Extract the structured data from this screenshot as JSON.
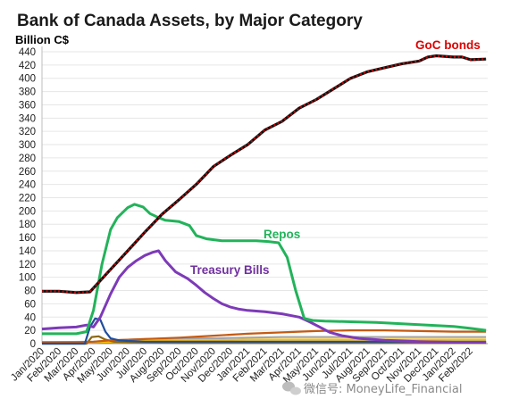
{
  "chart_data": {
    "type": "line",
    "title": "Bank of Canada Assets, by Major Category",
    "ylabel": "Billion C$",
    "xlabel": "",
    "ylim": [
      0,
      440
    ],
    "yticks": [
      0,
      20,
      40,
      60,
      80,
      100,
      120,
      140,
      160,
      180,
      200,
      220,
      240,
      260,
      280,
      300,
      320,
      340,
      360,
      380,
      400,
      420,
      440
    ],
    "grid": true,
    "legend": "inline labels",
    "categories": [
      "Jan/2020",
      "Feb/2020",
      "Mar/2020",
      "Apr/2020",
      "May/2020",
      "Jun/2020",
      "Jul/2020",
      "Aug/2020",
      "Sep/2020",
      "Oct/2020",
      "Nov/2020",
      "Dec/2020",
      "Jan/2021",
      "Feb/2021",
      "Mar/2021",
      "Apr/2021",
      "May/2021",
      "Jun/2021",
      "Jul/2021",
      "Aug/2021",
      "Sep/2021",
      "Oct/2021",
      "Nov/2021",
      "Dec/2021",
      "Jan/2022",
      "Feb/2022"
    ],
    "xtick_labels": [
      "Jan/2020",
      "Feb/2020",
      "Mar/2020",
      "Apr/2020",
      "May/2020",
      "Jun/2020",
      "Jul/2020",
      "Aug/2020",
      "Sep/2020",
      "Oct/2020",
      "Nov/2020",
      "Dec/2020",
      "Jan/2021",
      "Feb/2021",
      "Mar/2021",
      "Apr/2021",
      "May/2021",
      "Jun/2021",
      "Jul/2021",
      "Aug/2021",
      "Sep/2021",
      "Oct/2021",
      "Nov/2021",
      "Dec/2021",
      "Jan/2022",
      "Feb/2022"
    ],
    "series": [
      {
        "name": "GoC bonds",
        "color": "#c00000",
        "style": "dotted",
        "label_color": "#e00000",
        "values": [
          [
            0,
            79
          ],
          [
            1,
            79
          ],
          [
            2,
            77
          ],
          [
            2.8,
            78
          ],
          [
            3.3,
            92
          ],
          [
            4,
            112
          ],
          [
            5,
            140
          ],
          [
            6,
            168
          ],
          [
            7,
            195
          ],
          [
            8,
            217
          ],
          [
            9,
            240
          ],
          [
            10,
            267
          ],
          [
            11,
            284
          ],
          [
            12,
            300
          ],
          [
            13,
            322
          ],
          [
            14,
            335
          ],
          [
            15,
            355
          ],
          [
            16,
            368
          ],
          [
            17,
            384
          ],
          [
            18,
            400
          ],
          [
            19,
            410
          ],
          [
            20,
            416
          ],
          [
            21,
            422
          ],
          [
            22,
            426
          ],
          [
            22.5,
            432
          ],
          [
            23,
            434
          ],
          [
            24,
            432
          ],
          [
            24.5,
            432
          ],
          [
            25,
            428
          ],
          [
            25.9,
            429
          ]
        ]
      },
      {
        "name": "Repos",
        "color": "#22b35a",
        "style": "solid",
        "label_color": "#22b35a",
        "values": [
          [
            0,
            15
          ],
          [
            2,
            15
          ],
          [
            2.6,
            18
          ],
          [
            3,
            50
          ],
          [
            3.5,
            120
          ],
          [
            4,
            172
          ],
          [
            4.4,
            190
          ],
          [
            5,
            205
          ],
          [
            5.4,
            210
          ],
          [
            5.9,
            206
          ],
          [
            6.3,
            196
          ],
          [
            6.8,
            190
          ],
          [
            7.2,
            186
          ],
          [
            8,
            184
          ],
          [
            8.6,
            178
          ],
          [
            9,
            163
          ],
          [
            9.6,
            158
          ],
          [
            10.5,
            155
          ],
          [
            11.5,
            155
          ],
          [
            12.5,
            155
          ],
          [
            13.2,
            154
          ],
          [
            13.8,
            152
          ],
          [
            14.3,
            130
          ],
          [
            14.8,
            80
          ],
          [
            15.3,
            38
          ],
          [
            15.8,
            35
          ],
          [
            16.5,
            34
          ],
          [
            18,
            33
          ],
          [
            19.5,
            32
          ],
          [
            21,
            30
          ],
          [
            22.5,
            28
          ],
          [
            24,
            26
          ],
          [
            25,
            23
          ],
          [
            25.9,
            20
          ]
        ]
      },
      {
        "name": "Treasury Bills",
        "color": "#7d3ab8",
        "style": "solid",
        "label_color": "#7030a0",
        "values": [
          [
            0,
            22
          ],
          [
            1,
            24
          ],
          [
            2,
            25
          ],
          [
            2.6,
            28
          ],
          [
            3,
            25
          ],
          [
            3.4,
            40
          ],
          [
            4,
            75
          ],
          [
            4.5,
            100
          ],
          [
            5,
            115
          ],
          [
            5.5,
            125
          ],
          [
            6,
            133
          ],
          [
            6.5,
            138
          ],
          [
            6.8,
            140
          ],
          [
            7.2,
            125
          ],
          [
            7.8,
            108
          ],
          [
            8.5,
            98
          ],
          [
            9,
            88
          ],
          [
            9.5,
            77
          ],
          [
            10,
            68
          ],
          [
            10.5,
            60
          ],
          [
            11,
            55
          ],
          [
            11.5,
            52
          ],
          [
            12,
            50
          ],
          [
            13,
            48
          ],
          [
            14,
            45
          ],
          [
            14.6,
            42
          ],
          [
            15,
            40
          ],
          [
            15.6,
            33
          ],
          [
            16.2,
            25
          ],
          [
            16.8,
            17
          ],
          [
            17.5,
            12
          ],
          [
            18.5,
            8
          ],
          [
            20,
            5
          ],
          [
            22,
            3
          ],
          [
            24,
            2
          ],
          [
            25.9,
            2
          ]
        ]
      },
      {
        "name": "",
        "color": "#1f4e9c",
        "style": "solid",
        "values": [
          [
            0,
            0
          ],
          [
            2.5,
            0
          ],
          [
            2.8,
            25
          ],
          [
            3.1,
            38
          ],
          [
            3.4,
            36
          ],
          [
            3.7,
            18
          ],
          [
            4,
            8
          ],
          [
            4.5,
            5
          ],
          [
            5,
            4
          ],
          [
            6,
            3
          ],
          [
            8,
            3
          ],
          [
            12,
            3
          ],
          [
            16,
            3
          ],
          [
            20,
            3
          ],
          [
            24,
            3
          ],
          [
            25.9,
            3
          ]
        ]
      },
      {
        "name": "",
        "color": "#c55a11",
        "style": "solid",
        "values": [
          [
            0,
            2
          ],
          [
            2,
            2
          ],
          [
            3,
            3
          ],
          [
            4,
            5
          ],
          [
            6,
            7
          ],
          [
            8,
            9
          ],
          [
            10,
            12
          ],
          [
            12,
            15
          ],
          [
            14,
            17
          ],
          [
            16,
            19
          ],
          [
            18,
            20
          ],
          [
            20,
            20
          ],
          [
            22,
            19
          ],
          [
            24,
            18
          ],
          [
            25.9,
            18
          ]
        ]
      },
      {
        "name": "",
        "color": "#8b6914",
        "style": "solid",
        "values": [
          [
            0,
            0
          ],
          [
            2.6,
            0
          ],
          [
            2.9,
            10
          ],
          [
            3.3,
            11
          ],
          [
            3.7,
            6
          ],
          [
            4.2,
            3
          ],
          [
            5,
            2
          ],
          [
            8,
            1
          ],
          [
            12,
            1
          ],
          [
            16,
            1
          ],
          [
            20,
            1
          ],
          [
            25.9,
            1
          ]
        ]
      },
      {
        "name": "",
        "color": "#a5a5a5",
        "style": "solid",
        "values": [
          [
            0,
            2
          ],
          [
            3,
            3
          ],
          [
            4,
            5
          ],
          [
            6,
            7
          ],
          [
            8,
            8
          ],
          [
            10,
            8
          ],
          [
            12,
            9
          ],
          [
            14,
            10
          ],
          [
            16,
            10
          ],
          [
            18,
            10
          ],
          [
            20,
            10
          ],
          [
            22,
            10
          ],
          [
            24,
            10
          ],
          [
            25.9,
            10
          ]
        ]
      },
      {
        "name": "",
        "color": "#ffc000",
        "style": "solid",
        "values": [
          [
            0,
            1
          ],
          [
            2,
            2
          ],
          [
            4,
            3
          ],
          [
            6,
            4
          ],
          [
            8,
            5
          ],
          [
            10,
            5
          ],
          [
            12,
            6
          ],
          [
            14,
            6
          ],
          [
            16,
            6
          ],
          [
            18,
            6
          ],
          [
            20,
            6
          ],
          [
            22,
            6
          ],
          [
            24,
            6
          ],
          [
            25.9,
            6
          ]
        ]
      },
      {
        "name": "",
        "color": "#bf9000",
        "style": "solid",
        "values": [
          [
            0,
            2
          ],
          [
            2,
            2
          ],
          [
            4,
            2
          ],
          [
            8,
            2
          ],
          [
            12,
            2
          ],
          [
            16,
            2
          ],
          [
            20,
            2
          ],
          [
            24,
            2
          ],
          [
            25.9,
            2
          ]
        ]
      }
    ]
  },
  "watermark": "微信号: MoneyLife_Financial"
}
